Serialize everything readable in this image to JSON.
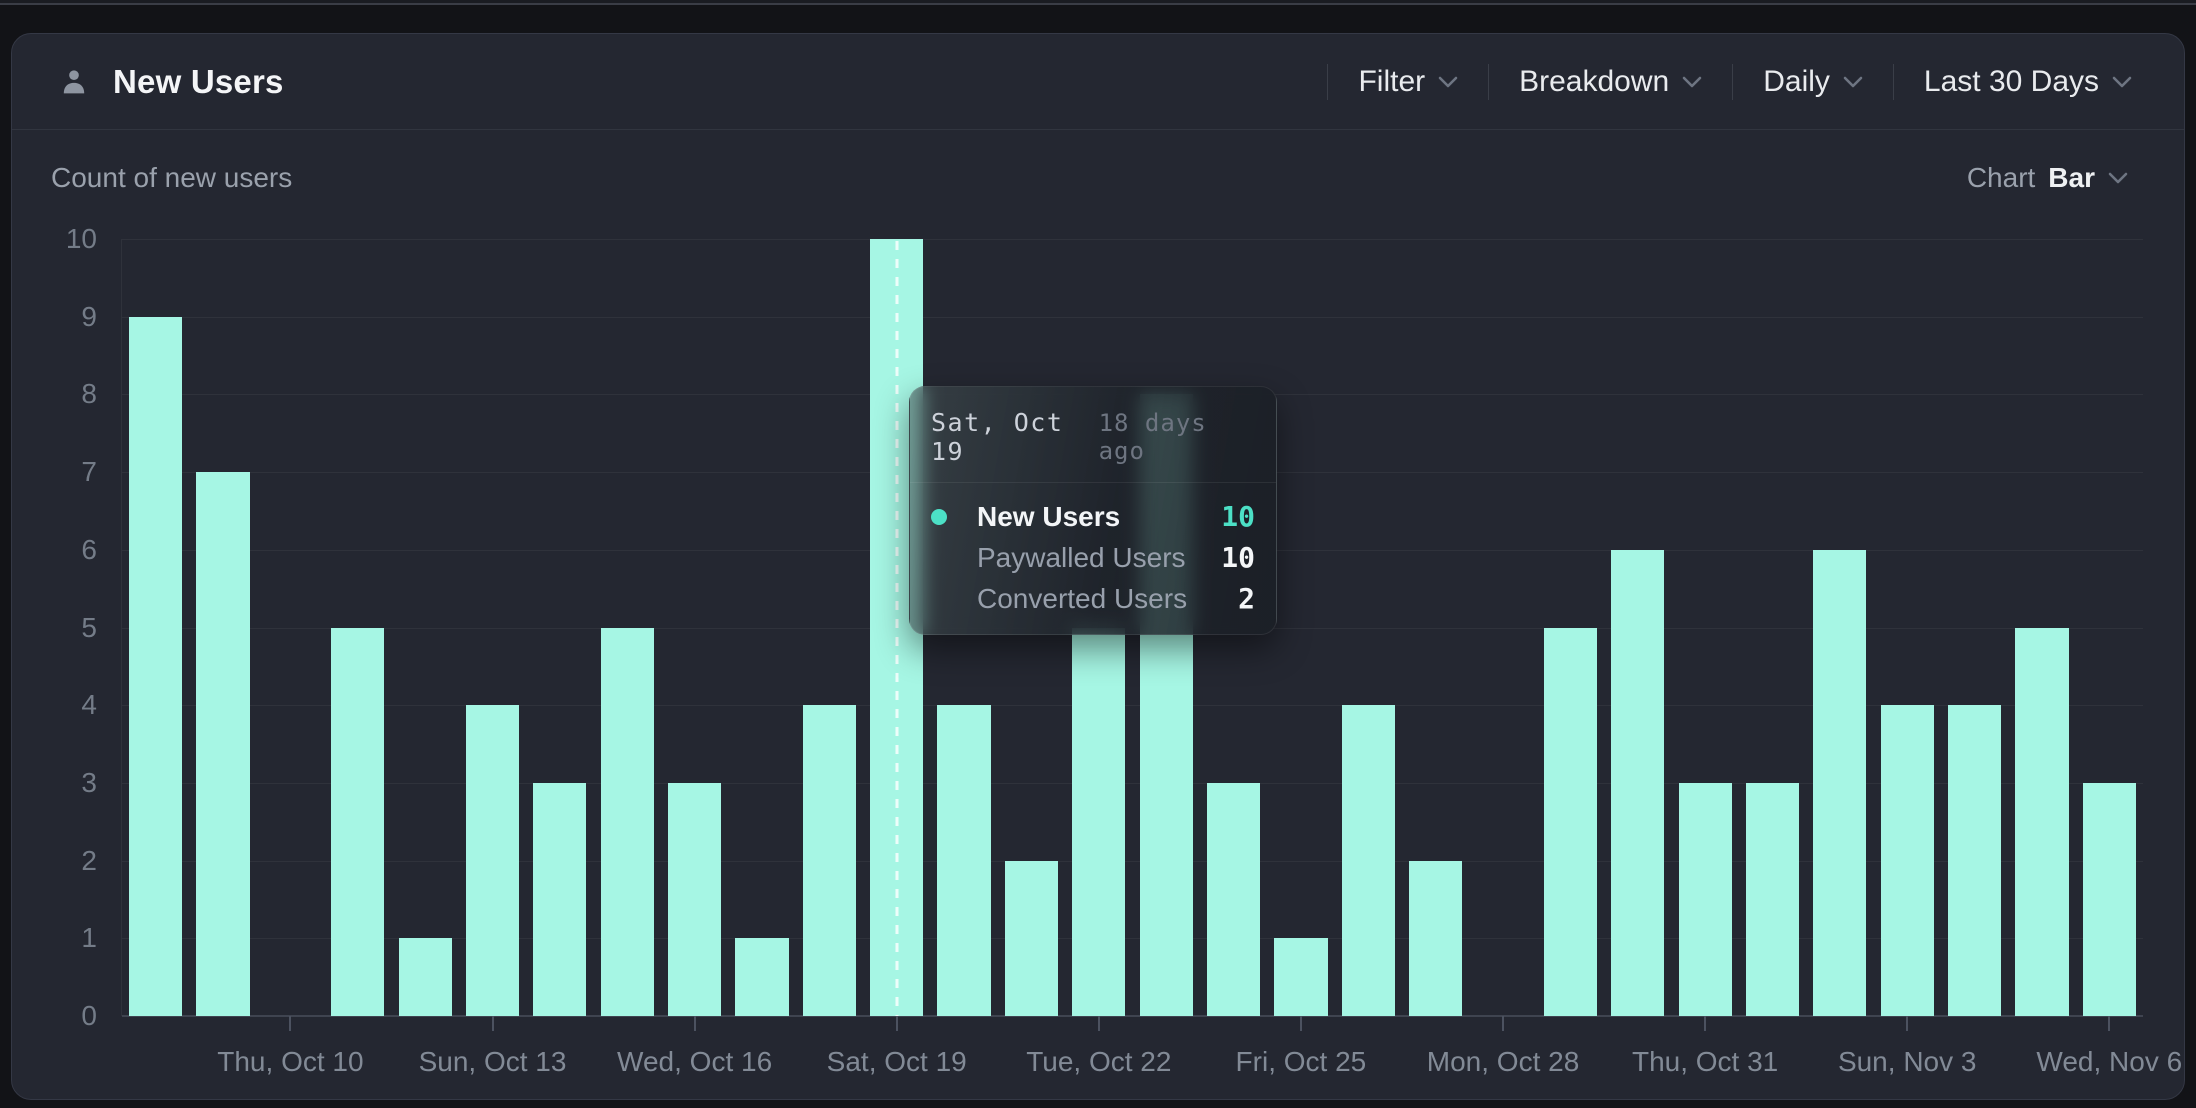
{
  "header": {
    "title": "New Users",
    "controls": [
      {
        "label": "Filter"
      },
      {
        "label": "Breakdown"
      },
      {
        "label": "Daily"
      },
      {
        "label": "Last 30 Days"
      }
    ]
  },
  "chart_header": {
    "subtitle": "Count of new users",
    "chart_label": "Chart",
    "chart_value": "Bar"
  },
  "chart_data": {
    "type": "bar",
    "title": "New Users",
    "series_name": "New Users",
    "x": [
      "Oct 8",
      "Oct 9",
      "Oct 10",
      "Oct 11",
      "Oct 12",
      "Oct 13",
      "Oct 14",
      "Oct 15",
      "Oct 16",
      "Oct 17",
      "Oct 18",
      "Oct 19",
      "Oct 20",
      "Oct 21",
      "Oct 22",
      "Oct 23",
      "Oct 24",
      "Oct 25",
      "Oct 26",
      "Oct 27",
      "Oct 28",
      "Oct 29",
      "Oct 30",
      "Oct 31",
      "Nov 1",
      "Nov 2",
      "Nov 3",
      "Nov 4",
      "Nov 5",
      "Nov 6"
    ],
    "values": [
      9,
      7,
      0,
      5,
      1,
      4,
      3,
      5,
      3,
      1,
      4,
      10,
      4,
      2,
      5,
      8,
      3,
      1,
      4,
      2,
      0,
      5,
      6,
      3,
      3,
      6,
      4,
      4,
      5,
      3
    ],
    "ylim": [
      0,
      10
    ],
    "y_ticks": [
      0,
      1,
      2,
      3,
      4,
      5,
      6,
      7,
      8,
      9,
      10
    ],
    "x_tick_labels": [
      "Thu, Oct 10",
      "Sun, Oct 13",
      "Wed, Oct 16",
      "Sat, Oct 19",
      "Tue, Oct 22",
      "Fri, Oct 25",
      "Mon, Oct 28",
      "Thu, Oct 31",
      "Sun, Nov 3",
      "Wed, Nov 6"
    ],
    "x_tick_indices": [
      2,
      5,
      8,
      11,
      14,
      17,
      20,
      23,
      26,
      29
    ],
    "grid": true,
    "legend": false,
    "bar_color": "#a6f6e4",
    "accent_color": "#4ce0c6",
    "hover_index": 11
  },
  "tooltip": {
    "date": "Sat, Oct 19",
    "relative_time": "18 days ago",
    "rows": [
      {
        "label": "New Users",
        "value": "10"
      },
      {
        "label": "Paywalled Users",
        "value": "10"
      },
      {
        "label": "Converted Users",
        "value": "2"
      }
    ]
  }
}
